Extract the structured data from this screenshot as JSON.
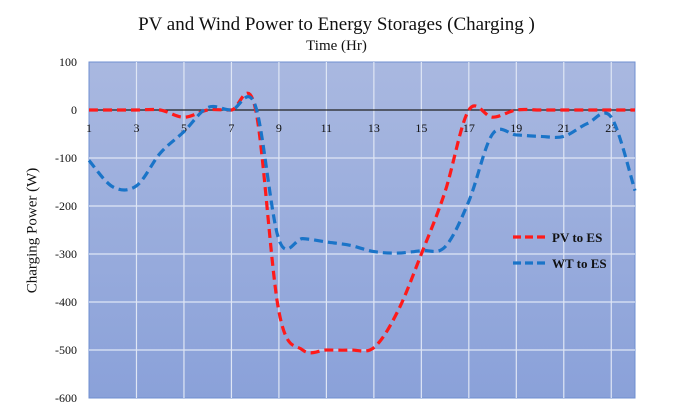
{
  "chart_data": {
    "type": "line",
    "title": "PV and Wind Power to Energy Storages (Charging )",
    "xlabel": "Time (Hr)",
    "ylabel": "Charging Power (W)",
    "xlim": [
      1,
      24
    ],
    "ylim": [
      -600,
      100
    ],
    "x_ticks": [
      1,
      3,
      5,
      7,
      9,
      11,
      13,
      15,
      17,
      19,
      21,
      23
    ],
    "y_ticks": [
      100,
      0,
      -100,
      -200,
      -300,
      -400,
      -500,
      -600
    ],
    "grid": true,
    "legend_position": "right",
    "x": [
      1,
      2,
      3,
      4,
      5,
      6,
      7,
      8,
      9,
      10,
      11,
      12,
      13,
      14,
      15,
      16,
      17,
      18,
      19,
      20,
      21,
      22,
      23,
      24
    ],
    "series": [
      {
        "name": "PV to ES",
        "color": "#ff1a1a",
        "values": [
          0,
          0,
          0,
          0,
          -15,
          0,
          0,
          5,
          -420,
          -500,
          -500,
          -500,
          -495,
          -420,
          -300,
          -170,
          0,
          -15,
          0,
          0,
          0,
          0,
          0,
          0
        ]
      },
      {
        "name": "WT to ES",
        "color": "#1a74c8",
        "values": [
          -105,
          -160,
          -158,
          -90,
          -45,
          5,
          0,
          10,
          -270,
          -268,
          -275,
          -282,
          -295,
          -298,
          -293,
          -285,
          -190,
          -50,
          -52,
          -55,
          -55,
          -28,
          -15,
          -168
        ]
      }
    ]
  }
}
